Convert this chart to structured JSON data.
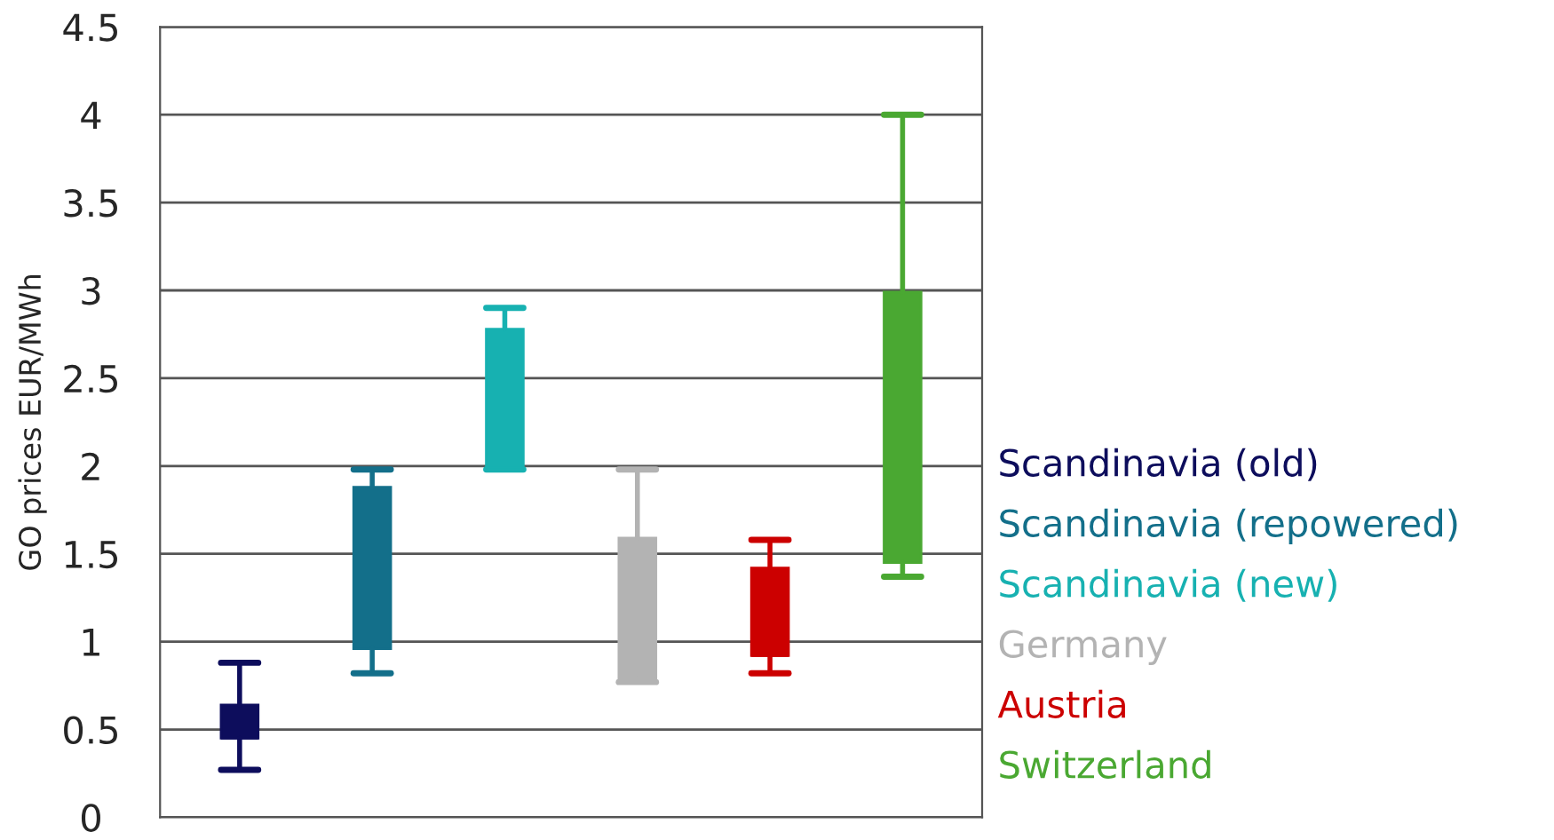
{
  "chart_data": {
    "type": "box",
    "ylabel": "GO prices EUR/MWh",
    "categories": [
      null,
      null,
      null,
      null,
      null,
      null
    ],
    "ylim": [
      0,
      4.5
    ],
    "yticks": [
      0,
      0.5,
      1,
      1.5,
      2,
      2.5,
      3,
      3.5,
      4,
      4.5
    ],
    "grid": "y",
    "legend": "right",
    "series": [
      {
        "name": "Scandinavia (old)",
        "color": "#0d0d5c",
        "boxes": [
          {
            "low": 0.27,
            "q1": 0.45,
            "median": 0.45,
            "q3": 0.64,
            "high": 0.88
          },
          null,
          null,
          null,
          null,
          null
        ]
      },
      {
        "name": "Scandinavia (repowered)",
        "color": "#136f8a",
        "boxes": [
          null,
          {
            "low": 0.82,
            "q1": 0.96,
            "median": 0.96,
            "q3": 1.88,
            "high": 1.98
          },
          null,
          null,
          null,
          null
        ]
      },
      {
        "name": "Scandinavia (new)",
        "color": "#17b1b1",
        "boxes": [
          null,
          null,
          {
            "low": 1.98,
            "q1": 1.98,
            "median": 1.98,
            "q3": 2.78,
            "high": 2.9
          },
          null,
          null,
          null
        ]
      },
      {
        "name": "Germany",
        "color": "#b3b3b3",
        "boxes": [
          null,
          null,
          null,
          {
            "low": 0.77,
            "q1": 0.79,
            "median": 0.79,
            "q3": 1.59,
            "high": 1.98
          },
          null,
          null
        ]
      },
      {
        "name": "Austria",
        "color": "#cc0000",
        "boxes": [
          null,
          null,
          null,
          null,
          {
            "low": 0.82,
            "q1": 0.92,
            "median": 0.92,
            "q3": 1.42,
            "high": 1.58
          },
          null
        ]
      },
      {
        "name": "Switzerland",
        "color": "#4aa832",
        "boxes": [
          null,
          null,
          null,
          null,
          null,
          {
            "low": 1.37,
            "q1": 1.45,
            "median": 1.45,
            "q3": 2.99,
            "high": 4.0
          }
        ]
      }
    ]
  }
}
